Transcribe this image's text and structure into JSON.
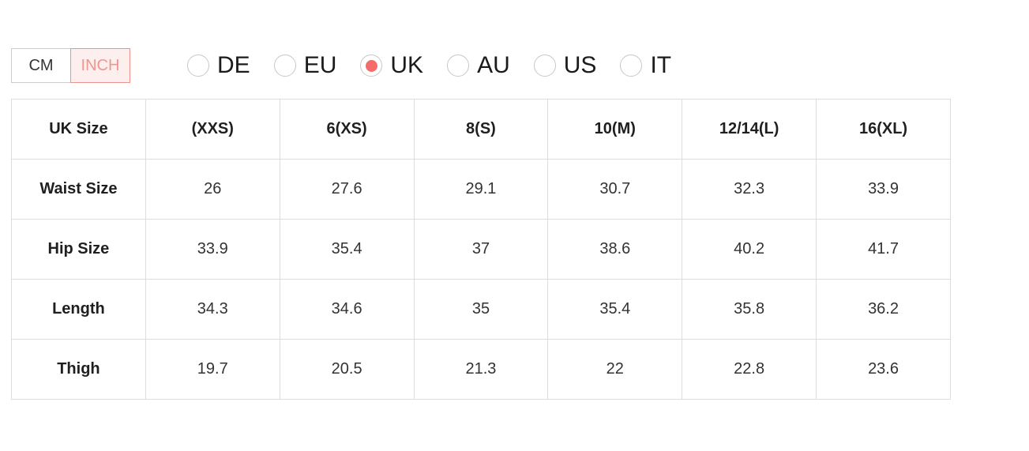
{
  "unit_toggle": {
    "options": [
      {
        "label": "CM",
        "selected": false
      },
      {
        "label": "INCH",
        "selected": true
      }
    ]
  },
  "region_options": [
    {
      "label": "DE",
      "selected": false
    },
    {
      "label": "EU",
      "selected": false
    },
    {
      "label": "UK",
      "selected": true
    },
    {
      "label": "AU",
      "selected": false
    },
    {
      "label": "US",
      "selected": false
    },
    {
      "label": "IT",
      "selected": false
    }
  ],
  "size_table": {
    "header": [
      "UK Size",
      "(XXS)",
      "6(XS)",
      "8(S)",
      "10(M)",
      "12/14(L)",
      "16(XL)"
    ],
    "rows": [
      {
        "label": "Waist Size",
        "values": [
          "26",
          "27.6",
          "29.1",
          "30.7",
          "32.3",
          "33.9"
        ]
      },
      {
        "label": "Hip Size",
        "values": [
          "33.9",
          "35.4",
          "37",
          "38.6",
          "40.2",
          "41.7"
        ]
      },
      {
        "label": "Length",
        "values": [
          "34.3",
          "34.6",
          "35",
          "35.4",
          "35.8",
          "36.2"
        ]
      },
      {
        "label": "Thigh",
        "values": [
          "19.7",
          "20.5",
          "21.3",
          "22",
          "22.8",
          "23.6"
        ]
      }
    ]
  },
  "colors": {
    "accent": "#f56c6c",
    "inch_button_bg": "#fdefee",
    "inch_button_border": "#ef918b",
    "inch_button_text": "#f0968f",
    "table_border": "#dddddd",
    "text_dark": "#1f1f1f",
    "text_body": "#333333",
    "radio_border": "#c8c8c8"
  }
}
